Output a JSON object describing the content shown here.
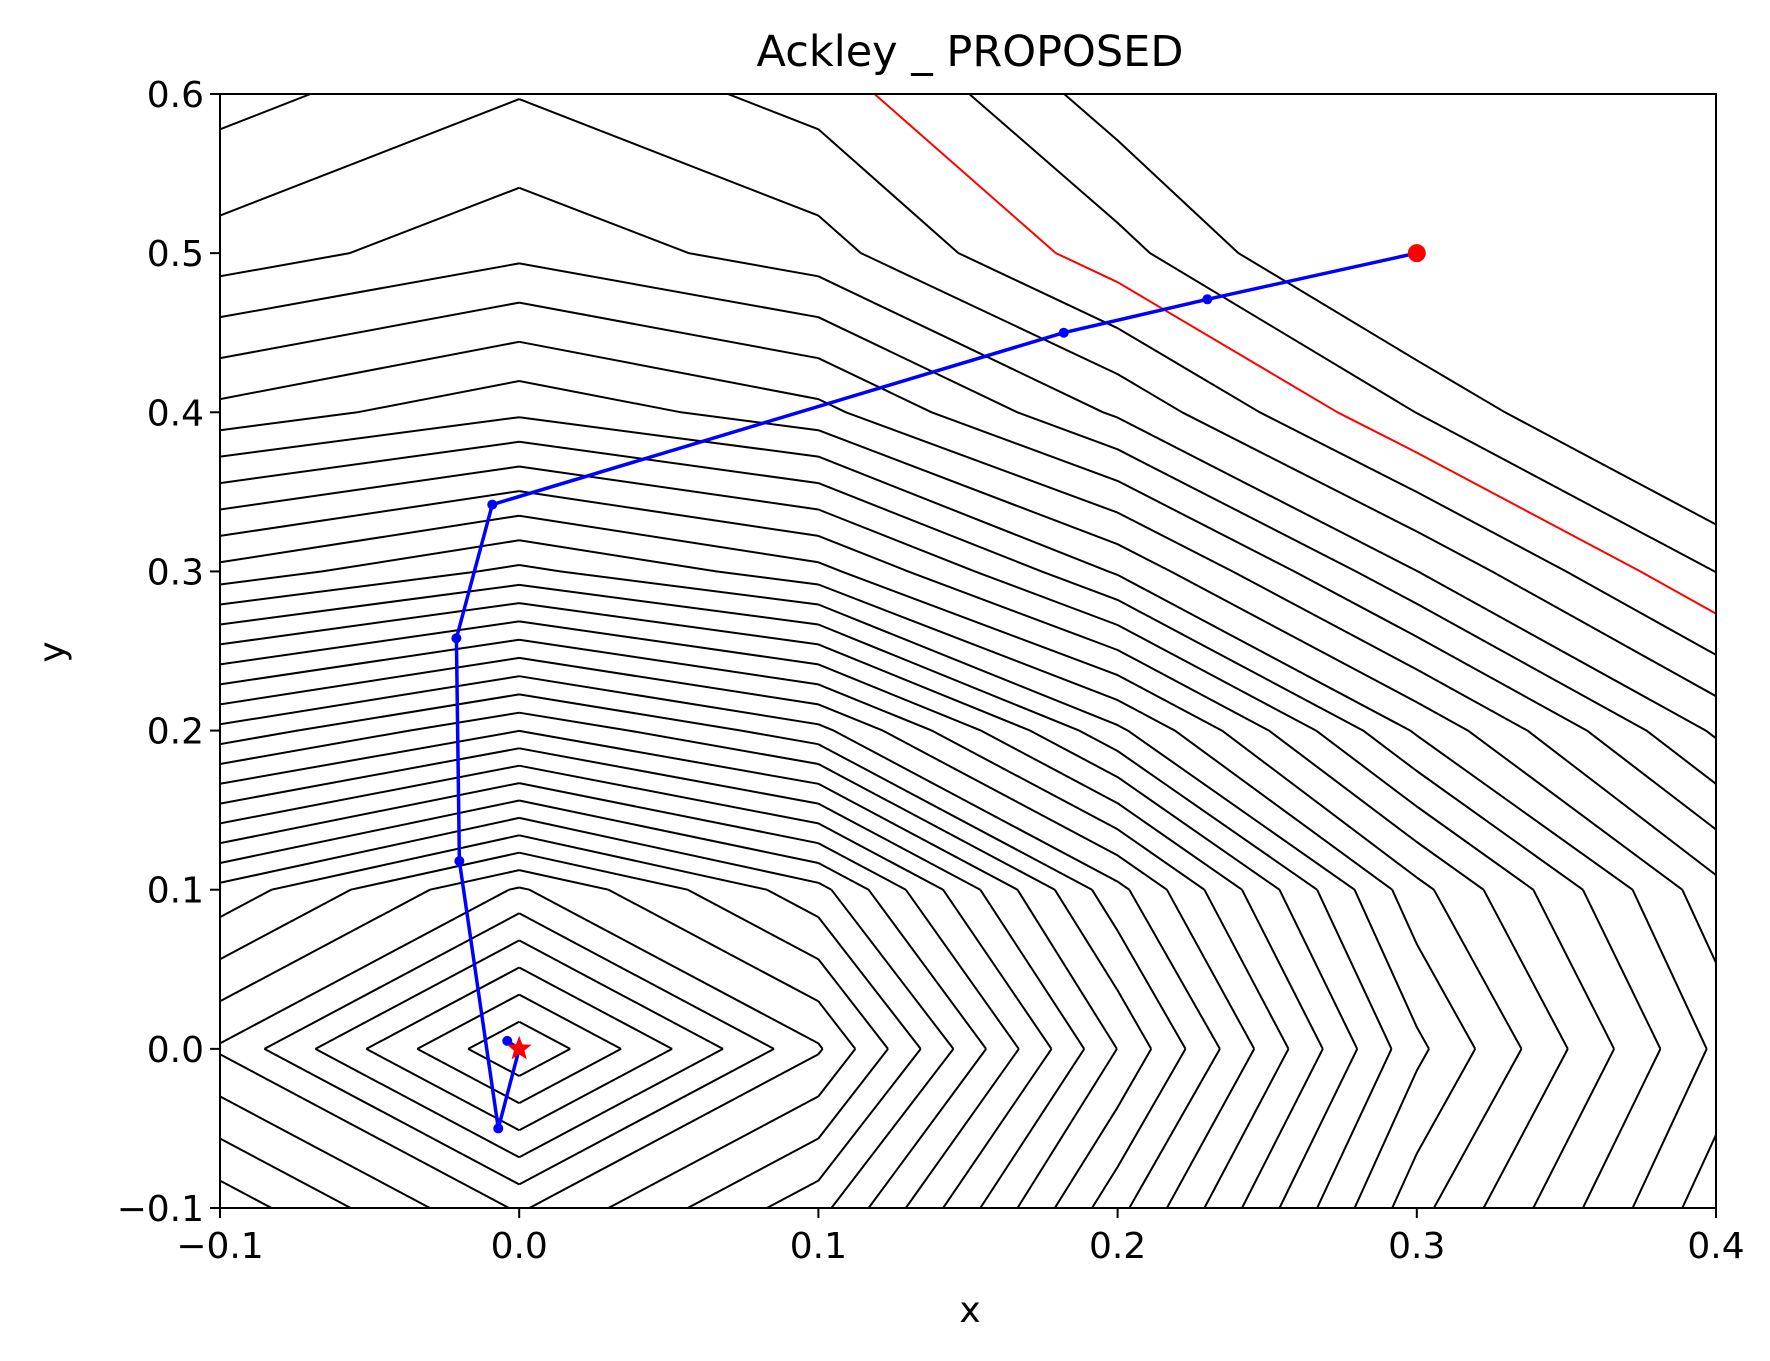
{
  "chart_data": {
    "type": "line",
    "title": "Ackley _ PROPOSED",
    "xlabel": "x",
    "ylabel": "y",
    "xlim": [
      -0.1,
      0.4
    ],
    "ylim": [
      -0.1,
      0.6
    ],
    "xticks": [
      -0.1,
      0.0,
      0.1,
      0.2,
      0.3,
      0.4
    ],
    "xtick_labels": [
      "−0.1",
      "0.0",
      "0.1",
      "0.2",
      "0.3",
      "0.4"
    ],
    "yticks": [
      -0.1,
      0.0,
      0.1,
      0.2,
      0.3,
      0.4,
      0.5,
      0.6
    ],
    "ytick_labels": [
      "−0.1",
      "0.0",
      "0.1",
      "0.2",
      "0.3",
      "0.4",
      "0.5",
      "0.6"
    ],
    "grid": false,
    "contour_color": "#000000",
    "highlight_contour_color": "#ff0000",
    "path_color": "#0000ff",
    "start_color": "#ff0000",
    "optimum_marker": "star",
    "series": [
      {
        "kind": "path",
        "x": [
          0.3,
          0.23,
          0.182,
          -0.009,
          -0.021,
          -0.02,
          -0.007,
          0.0,
          -0.004
        ],
        "y": [
          0.5,
          0.471,
          0.45,
          0.342,
          0.258,
          0.118,
          -0.05,
          0.0,
          0.005
        ]
      }
    ],
    "start_point": {
      "x": 0.3,
      "y": 0.5
    },
    "optimum_point": {
      "x": 0.0,
      "y": 0.0
    }
  }
}
